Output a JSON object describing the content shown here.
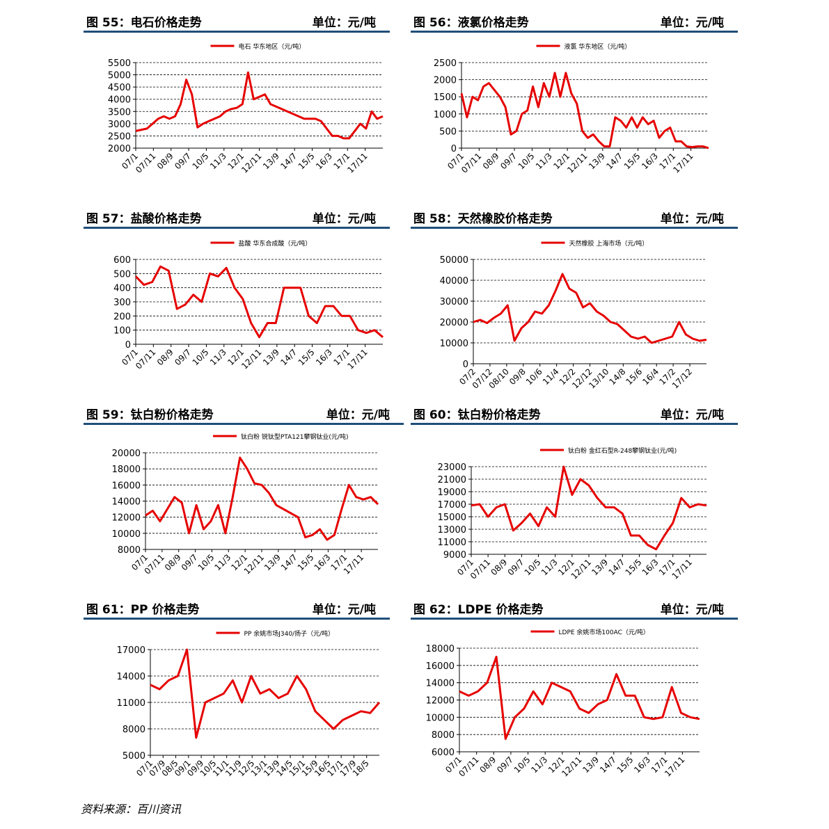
{
  "series_color": "#e60000",
  "grid_color": "#000000",
  "header_rule_color": "#1f4e79",
  "source_note": "资料来源：百川资讯",
  "chart_data": [
    {
      "type": "line",
      "figure_label": "图 55：电石价格走势",
      "unit_label": "单位：元/吨",
      "legend": "电石 华东地区（元/吨）",
      "ylim": [
        2000,
        5500
      ],
      "yticks": [
        2000,
        2500,
        3000,
        3500,
        4000,
        4500,
        5000,
        5500
      ],
      "xticks": [
        "07/1",
        "07/11",
        "08/9",
        "09/7",
        "10/5",
        "11/3",
        "12/1",
        "12/11",
        "13/9",
        "14/7",
        "15/5",
        "16/3",
        "17/1",
        "17/11"
      ],
      "values": [
        2700,
        2750,
        2800,
        3000,
        3200,
        3300,
        3200,
        3300,
        3800,
        4800,
        4200,
        2850,
        3000,
        3100,
        3200,
        3300,
        3500,
        3600,
        3650,
        3800,
        5100,
        4000,
        4100,
        4200,
        3800,
        3700,
        3600,
        3500,
        3400,
        3300,
        3200,
        3200,
        3200,
        3100,
        2800,
        2500,
        2500,
        2400,
        2400,
        2700,
        3000,
        2800,
        3500,
        3200,
        3300
      ]
    },
    {
      "type": "line",
      "figure_label": "图 56：液氯价格走势",
      "unit_label": "单位：元/吨",
      "legend": "液氯 华东地区（元/吨）",
      "ylim": [
        0,
        2500
      ],
      "yticks": [
        0,
        500,
        1000,
        1500,
        2000,
        2500
      ],
      "xticks": [
        "07/1",
        "07/11",
        "08/9",
        "09/7",
        "10/5",
        "11/3",
        "12/1",
        "12/11",
        "13/9",
        "14/7",
        "15/5",
        "16/3",
        "17/1",
        "17/11"
      ],
      "values": [
        1600,
        900,
        1500,
        1400,
        1800,
        1900,
        1700,
        1500,
        1200,
        400,
        500,
        1000,
        1100,
        1800,
        1200,
        1900,
        1500,
        2200,
        1500,
        2200,
        1600,
        1300,
        500,
        300,
        400,
        200,
        50,
        50,
        900,
        800,
        600,
        900,
        600,
        900,
        700,
        800,
        300,
        500,
        600,
        200,
        200,
        50,
        30,
        50,
        50,
        0
      ]
    },
    {
      "type": "line",
      "figure_label": "图 57：盐酸价格走势",
      "unit_label": "单位：元/吨",
      "legend": "盐酸 华东合成酸（元/吨）",
      "ylim": [
        0,
        600
      ],
      "yticks": [
        0,
        100,
        200,
        300,
        400,
        500,
        600
      ],
      "xticks": [
        "07/1",
        "07/11",
        "08/9",
        "09/7",
        "10/5",
        "11/3",
        "12/1",
        "12/11",
        "13/9",
        "14/7",
        "15/5",
        "16/3",
        "17/1",
        "17/11"
      ],
      "values": [
        480,
        420,
        440,
        550,
        520,
        250,
        280,
        350,
        300,
        500,
        480,
        540,
        400,
        320,
        150,
        50,
        150,
        150,
        400,
        400,
        400,
        200,
        150,
        270,
        270,
        200,
        200,
        100,
        80,
        100,
        50
      ]
    },
    {
      "type": "line",
      "figure_label": "图 58：天然橡胶价格走势",
      "unit_label": "单位：元/吨",
      "legend": "天然橡胶 上海市场（元/吨）",
      "ylim": [
        0,
        50000
      ],
      "yticks": [
        0,
        10000,
        20000,
        30000,
        40000,
        50000
      ],
      "xticks": [
        "07/2",
        "07/12",
        "08/10",
        "09/8",
        "10/6",
        "11/4",
        "12/2",
        "12/12",
        "13/10",
        "14/8",
        "15/6",
        "16/4",
        "17/2",
        "17/12"
      ],
      "values": [
        20000,
        21000,
        19500,
        22000,
        24000,
        28000,
        11000,
        17000,
        20000,
        25000,
        24000,
        28000,
        35000,
        43000,
        36000,
        34000,
        27000,
        29000,
        25000,
        23000,
        20000,
        19000,
        16000,
        13000,
        12000,
        13000,
        10000,
        11000,
        12000,
        13000,
        20000,
        14000,
        12000,
        11000,
        11500
      ]
    },
    {
      "type": "line",
      "figure_label": "图 59：钛白粉价格走势",
      "unit_label": "单位：元/吨",
      "legend": "钛白粉 锐钛型PTA121攀钢钛业(元/吨)",
      "ylim": [
        8000,
        20000
      ],
      "yticks": [
        8000,
        10000,
        12000,
        14000,
        16000,
        18000,
        20000
      ],
      "xticks": [
        "07/1",
        "07/11",
        "08/9",
        "09/7",
        "10/5",
        "11/3",
        "12/1",
        "12/11",
        "13/9",
        "14/7",
        "15/5",
        "16/3",
        "17/1",
        "17/11"
      ],
      "values": [
        12200,
        12800,
        11500,
        13000,
        14500,
        13800,
        10000,
        13500,
        10500,
        11500,
        13500,
        10000,
        14500,
        19400,
        18000,
        16200,
        16000,
        15000,
        13500,
        13000,
        12500,
        12000,
        9500,
        9800,
        10500,
        9200,
        9800,
        13000,
        16000,
        14500,
        14200,
        14500,
        13600
      ]
    },
    {
      "type": "line",
      "figure_label": "图 60：钛白粉价格走势",
      "unit_label": "单位：元/吨",
      "legend": "钛白粉 金红石型R-248攀钢钛业(元/吨)",
      "ylim": [
        9000,
        23000
      ],
      "yticks": [
        9000,
        11000,
        13000,
        15000,
        17000,
        19000,
        21000,
        23000
      ],
      "xticks": [
        "07/1",
        "07/11",
        "08/9",
        "09/7",
        "10/5",
        "11/3",
        "12/1",
        "12/11",
        "13/9",
        "14/7",
        "15/5",
        "16/3",
        "17/1",
        "17/11"
      ],
      "values": [
        16800,
        17000,
        15000,
        16500,
        17000,
        12800,
        14000,
        15500,
        13500,
        16500,
        15000,
        23000,
        18500,
        21000,
        20000,
        18000,
        16500,
        16500,
        15500,
        12000,
        12000,
        10500,
        9800,
        12000,
        14000,
        18000,
        16500,
        17000,
        16800
      ]
    },
    {
      "type": "line",
      "figure_label": "图 61：PP 价格走势",
      "unit_label": "单位：元/吨",
      "legend": "PP 余姚市场J340/扬子（元/吨）",
      "ylim": [
        5000,
        17000
      ],
      "yticks": [
        5000,
        8000,
        11000,
        14000,
        17000
      ],
      "xticks": [
        "07/1",
        "07/9",
        "08/5",
        "09/1",
        "09/9",
        "10/5",
        "11/1",
        "11/9",
        "12/5",
        "13/1",
        "13/9",
        "14/5",
        "15/1",
        "15/9",
        "16/5",
        "17/1",
        "17/9",
        "18/5"
      ],
      "values": [
        13000,
        12500,
        13500,
        14000,
        17000,
        7000,
        11000,
        11500,
        12000,
        13500,
        11000,
        14000,
        12000,
        12500,
        11500,
        12000,
        14000,
        12500,
        10000,
        9000,
        8000,
        9000,
        9500,
        10000,
        9800,
        11000
      ]
    },
    {
      "type": "line",
      "figure_label": "图 62：LDPE 价格走势",
      "unit_label": "单位：元/吨",
      "legend": "LDPE 余姚市场100AC（元/吨）",
      "ylim": [
        6000,
        18000
      ],
      "yticks": [
        6000,
        8000,
        10000,
        12000,
        14000,
        16000,
        18000
      ],
      "xticks": [
        "07/1",
        "07/11",
        "08/9",
        "09/7",
        "10/5",
        "11/3",
        "12/1",
        "12/11",
        "13/9",
        "14/7",
        "15/5",
        "16/3",
        "17/1",
        "17/11"
      ],
      "values": [
        13000,
        12500,
        13000,
        14000,
        17000,
        7500,
        10000,
        11000,
        13000,
        11500,
        14000,
        13500,
        13000,
        11000,
        10500,
        11500,
        12000,
        15000,
        12500,
        12500,
        10000,
        9800,
        10000,
        13500,
        10500,
        10000,
        9800
      ]
    }
  ]
}
